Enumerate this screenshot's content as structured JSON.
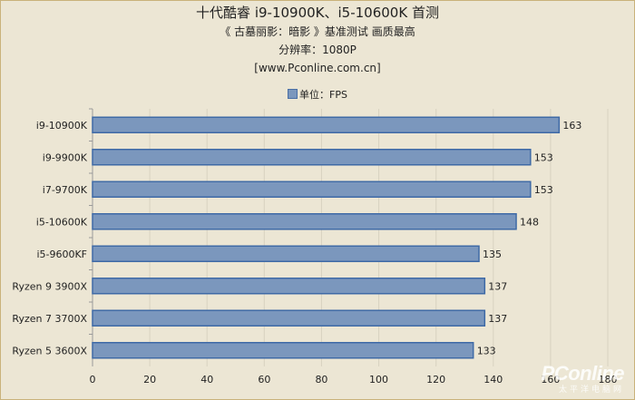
{
  "chart_data": {
    "type": "bar",
    "orientation": "horizontal",
    "title": "十代酷睿 i9-10900K、i5-10600K 首测",
    "subtitle_lines": [
      "《 古墓丽影：暗影 》基准测试  画质最高",
      "分辨率：1080P",
      "[www.Pconline.com.cn]"
    ],
    "legend": [
      "单位：FPS"
    ],
    "categories": [
      "i9-10900K",
      "i9-9900K",
      "i7-9700K",
      "i5-10600K",
      "i5-9600KF",
      "Ryzen 9 3900X",
      "Ryzen 7 3700X",
      "Ryzen 5 3600X"
    ],
    "values": [
      163,
      153,
      153,
      148,
      135,
      137,
      137,
      133
    ],
    "xlim": [
      0,
      180
    ],
    "xticks": [
      0,
      20,
      40,
      60,
      80,
      100,
      120,
      140,
      160,
      180
    ],
    "grid": true,
    "legend_position": "top-center",
    "colors": {
      "bar_fill": "#7b97bd",
      "bar_stroke": "#3f6aa6",
      "background": "#ece6d4",
      "grid": "#d8d2c0"
    }
  },
  "watermark": {
    "brand": "PConline",
    "sub": "太平洋电脑网"
  }
}
